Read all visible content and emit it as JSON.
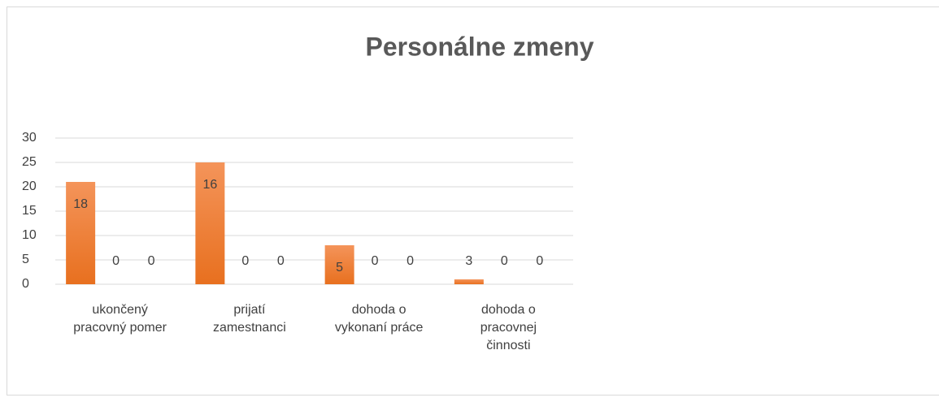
{
  "chart_data": {
    "type": "bar",
    "title": "Personálne zmeny",
    "categories": [
      "ukončený pracovný pomer",
      "prijatí zamestnanci",
      "dohoda o vykonaní práce",
      "dohoda o pracovnej činnosti"
    ],
    "series": [
      {
        "color": "#ed7d31",
        "values": [
          21,
          25,
          8,
          1
        ]
      },
      {
        "color": "#a5a5a5",
        "values": [
          0,
          0,
          0,
          0
        ]
      },
      {
        "color": "#ffc000",
        "values": [
          0,
          0,
          0,
          0
        ]
      }
    ],
    "annotations": [
      "18",
      "16",
      "5",
      "3"
    ],
    "ylim": [
      0,
      30
    ],
    "yticks": [
      0,
      5,
      10,
      15,
      20,
      25,
      30
    ],
    "grid": true
  }
}
